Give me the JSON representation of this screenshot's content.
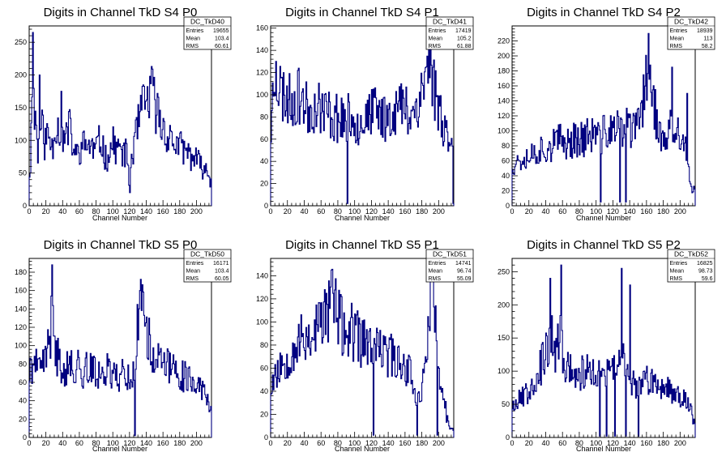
{
  "chart_data": [
    {
      "type": "histogram",
      "title": "Digits in Channel TkD S4 P0",
      "xlabel": "Channel Number",
      "xlim": [
        0,
        218
      ],
      "ylim": [
        0,
        275
      ],
      "xticks": [
        0,
        20,
        40,
        60,
        80,
        100,
        120,
        140,
        160,
        180,
        200
      ],
      "yticks": [
        0,
        50,
        100,
        150,
        200,
        250
      ],
      "stats": {
        "name": "DC_TkD40",
        "entries": "19655",
        "mean": "103.4",
        "rms": "60.61"
      },
      "profile": [
        [
          0,
          50
        ],
        [
          2,
          60
        ],
        [
          4,
          265
        ],
        [
          6,
          120
        ],
        [
          8,
          150
        ],
        [
          10,
          75
        ],
        [
          15,
          130
        ],
        [
          18,
          95
        ],
        [
          22,
          110
        ],
        [
          28,
          90
        ],
        [
          32,
          130
        ],
        [
          40,
          95
        ],
        [
          48,
          120
        ],
        [
          55,
          75
        ],
        [
          62,
          90
        ],
        [
          70,
          95
        ],
        [
          78,
          85
        ],
        [
          86,
          100
        ],
        [
          92,
          70
        ],
        [
          100,
          95
        ],
        [
          108,
          85
        ],
        [
          114,
          80
        ],
        [
          118,
          75
        ],
        [
          120,
          20
        ],
        [
          122,
          70
        ],
        [
          126,
          95
        ],
        [
          130,
          120
        ],
        [
          134,
          145
        ],
        [
          140,
          155
        ],
        [
          146,
          175
        ],
        [
          150,
          160
        ],
        [
          156,
          130
        ],
        [
          162,
          115
        ],
        [
          170,
          100
        ],
        [
          180,
          90
        ],
        [
          190,
          80
        ],
        [
          200,
          70
        ],
        [
          206,
          60
        ],
        [
          212,
          55
        ],
        [
          217,
          40
        ]
      ],
      "spikes": [
        [
          4,
          265
        ],
        [
          12,
          200
        ],
        [
          38,
          175
        ],
        [
          120,
          20
        ]
      ],
      "seed": 11
    },
    {
      "type": "histogram",
      "title": "Digits in Channel TkD S4 P1",
      "xlabel": "Channel Number",
      "xlim": [
        0,
        218
      ],
      "ylim": [
        0,
        162
      ],
      "xticks": [
        0,
        20,
        40,
        60,
        80,
        100,
        120,
        140,
        160,
        180,
        200
      ],
      "yticks": [
        0,
        20,
        40,
        60,
        80,
        100,
        120,
        140,
        160
      ],
      "stats": {
        "name": "DC_TkD41",
        "entries": "17419",
        "mean": "105.2",
        "rms": "61.88"
      },
      "profile": [
        [
          0,
          60
        ],
        [
          4,
          120
        ],
        [
          8,
          110
        ],
        [
          15,
          100
        ],
        [
          25,
          95
        ],
        [
          35,
          100
        ],
        [
          45,
          85
        ],
        [
          55,
          90
        ],
        [
          65,
          85
        ],
        [
          75,
          80
        ],
        [
          85,
          80
        ],
        [
          90,
          75
        ],
        [
          95,
          80
        ],
        [
          105,
          75
        ],
        [
          115,
          80
        ],
        [
          125,
          85
        ],
        [
          135,
          80
        ],
        [
          145,
          85
        ],
        [
          155,
          90
        ],
        [
          165,
          85
        ],
        [
          175,
          90
        ],
        [
          182,
          110
        ],
        [
          186,
          120
        ],
        [
          190,
          135
        ],
        [
          196,
          100
        ],
        [
          202,
          85
        ],
        [
          208,
          70
        ],
        [
          214,
          60
        ],
        [
          217,
          45
        ]
      ],
      "spikes": [
        [
          6,
          130
        ],
        [
          91,
          2
        ],
        [
          190,
          150
        ],
        [
          217,
          2
        ]
      ],
      "seed": 23
    },
    {
      "type": "histogram",
      "title": "Digits in Channel TkD S4 P2",
      "xlabel": "Channel Number",
      "xlim": [
        0,
        218
      ],
      "ylim": [
        0,
        240
      ],
      "xticks": [
        0,
        20,
        40,
        60,
        80,
        100,
        120,
        140,
        160,
        180,
        200
      ],
      "yticks": [
        0,
        20,
        40,
        60,
        80,
        100,
        120,
        140,
        160,
        180,
        200,
        220
      ],
      "stats": {
        "name": "DC_TkD42",
        "entries": "18939",
        "mean": "113",
        "rms": "58.2"
      },
      "profile": [
        [
          0,
          55
        ],
        [
          5,
          60
        ],
        [
          15,
          65
        ],
        [
          25,
          70
        ],
        [
          35,
          75
        ],
        [
          45,
          80
        ],
        [
          55,
          85
        ],
        [
          65,
          85
        ],
        [
          75,
          90
        ],
        [
          85,
          90
        ],
        [
          95,
          95
        ],
        [
          105,
          95
        ],
        [
          115,
          100
        ],
        [
          125,
          100
        ],
        [
          135,
          105
        ],
        [
          145,
          100
        ],
        [
          152,
          115
        ],
        [
          158,
          150
        ],
        [
          162,
          200
        ],
        [
          166,
          170
        ],
        [
          172,
          110
        ],
        [
          180,
          80
        ],
        [
          188,
          100
        ],
        [
          196,
          95
        ],
        [
          202,
          90
        ],
        [
          208,
          70
        ],
        [
          212,
          25
        ],
        [
          214,
          20
        ]
      ],
      "spikes": [
        [
          105,
          5
        ],
        [
          128,
          5
        ],
        [
          135,
          5
        ],
        [
          162,
          230
        ],
        [
          190,
          185
        ],
        [
          208,
          150
        ]
      ],
      "seed": 37
    },
    {
      "type": "histogram",
      "title": "Digits in Channel TkD S5 P0",
      "xlabel": "Channel Number",
      "xlim": [
        0,
        218
      ],
      "ylim": [
        0,
        195
      ],
      "xticks": [
        0,
        20,
        40,
        60,
        80,
        100,
        120,
        140,
        160,
        180,
        200
      ],
      "yticks": [
        0,
        20,
        40,
        60,
        80,
        100,
        120,
        140,
        160,
        180
      ],
      "stats": {
        "name": "DC_TkD50",
        "entries": "16171",
        "mean": "103.4",
        "rms": "60.05"
      },
      "profile": [
        [
          0,
          65
        ],
        [
          4,
          85
        ],
        [
          10,
          70
        ],
        [
          16,
          80
        ],
        [
          20,
          85
        ],
        [
          24,
          110
        ],
        [
          27,
          125
        ],
        [
          30,
          100
        ],
        [
          35,
          85
        ],
        [
          40,
          80
        ],
        [
          50,
          75
        ],
        [
          60,
          75
        ],
        [
          70,
          75
        ],
        [
          80,
          70
        ],
        [
          90,
          75
        ],
        [
          100,
          70
        ],
        [
          110,
          70
        ],
        [
          120,
          65
        ],
        [
          126,
          70
        ],
        [
          130,
          120
        ],
        [
          134,
          140
        ],
        [
          138,
          150
        ],
        [
          142,
          110
        ],
        [
          146,
          95
        ],
        [
          152,
          85
        ],
        [
          160,
          80
        ],
        [
          170,
          75
        ],
        [
          180,
          70
        ],
        [
          190,
          65
        ],
        [
          200,
          60
        ],
        [
          208,
          50
        ],
        [
          214,
          40
        ],
        [
          217,
          35
        ]
      ],
      "spikes": [
        [
          27,
          188
        ],
        [
          126,
          2
        ],
        [
          132,
          160
        ]
      ],
      "seed": 41
    },
    {
      "type": "histogram",
      "title": "Digits in Channel TkD S5 P1",
      "xlabel": "Channel Number",
      "xlim": [
        0,
        218
      ],
      "ylim": [
        0,
        155
      ],
      "xticks": [
        0,
        20,
        40,
        60,
        80,
        100,
        120,
        140,
        160,
        180,
        200
      ],
      "yticks": [
        0,
        20,
        40,
        60,
        80,
        100,
        120,
        140
      ],
      "stats": {
        "name": "DC_TkD51",
        "entries": "14741",
        "mean": "96.74",
        "rms": "55.09"
      },
      "profile": [
        [
          0,
          45
        ],
        [
          5,
          55
        ],
        [
          10,
          60
        ],
        [
          20,
          70
        ],
        [
          30,
          80
        ],
        [
          40,
          85
        ],
        [
          50,
          90
        ],
        [
          60,
          100
        ],
        [
          68,
          110
        ],
        [
          72,
          125
        ],
        [
          78,
          110
        ],
        [
          85,
          95
        ],
        [
          95,
          90
        ],
        [
          105,
          85
        ],
        [
          115,
          80
        ],
        [
          125,
          75
        ],
        [
          135,
          75
        ],
        [
          145,
          70
        ],
        [
          155,
          65
        ],
        [
          165,
          60
        ],
        [
          172,
          40
        ],
        [
          178,
          30
        ],
        [
          184,
          60
        ],
        [
          188,
          110
        ],
        [
          192,
          140
        ],
        [
          196,
          100
        ],
        [
          202,
          40
        ],
        [
          208,
          25
        ],
        [
          212,
          10
        ],
        [
          216,
          5
        ]
      ],
      "spikes": [
        [
          72,
          145
        ],
        [
          122,
          2
        ],
        [
          174,
          2
        ],
        [
          190,
          145
        ],
        [
          193,
          140
        ],
        [
          198,
          2
        ]
      ],
      "seed": 53
    },
    {
      "type": "histogram",
      "title": "Digits in Channel TkD S5 P2",
      "xlabel": "Channel Number",
      "xlim": [
        0,
        218
      ],
      "ylim": [
        0,
        270
      ],
      "xticks": [
        0,
        20,
        40,
        60,
        80,
        100,
        120,
        140,
        160,
        180,
        200
      ],
      "yticks": [
        0,
        50,
        100,
        150,
        200,
        250
      ],
      "stats": {
        "name": "DC_TkD52",
        "entries": "16825",
        "mean": "98.73",
        "rms": "59.6"
      },
      "profile": [
        [
          0,
          50
        ],
        [
          5,
          55
        ],
        [
          12,
          60
        ],
        [
          20,
          75
        ],
        [
          28,
          90
        ],
        [
          35,
          110
        ],
        [
          42,
          130
        ],
        [
          48,
          150
        ],
        [
          52,
          120
        ],
        [
          58,
          160
        ],
        [
          62,
          110
        ],
        [
          70,
          100
        ],
        [
          80,
          95
        ],
        [
          90,
          100
        ],
        [
          100,
          95
        ],
        [
          110,
          90
        ],
        [
          118,
          100
        ],
        [
          126,
          110
        ],
        [
          132,
          130
        ],
        [
          136,
          90
        ],
        [
          145,
          85
        ],
        [
          155,
          80
        ],
        [
          165,
          85
        ],
        [
          175,
          80
        ],
        [
          185,
          75
        ],
        [
          195,
          70
        ],
        [
          205,
          60
        ],
        [
          212,
          45
        ],
        [
          217,
          20
        ]
      ],
      "spikes": [
        [
          45,
          240
        ],
        [
          58,
          260
        ],
        [
          104,
          2
        ],
        [
          112,
          2
        ],
        [
          122,
          2
        ],
        [
          130,
          255
        ],
        [
          135,
          2
        ],
        [
          140,
          230
        ],
        [
          150,
          2
        ]
      ],
      "seed": 67
    }
  ]
}
